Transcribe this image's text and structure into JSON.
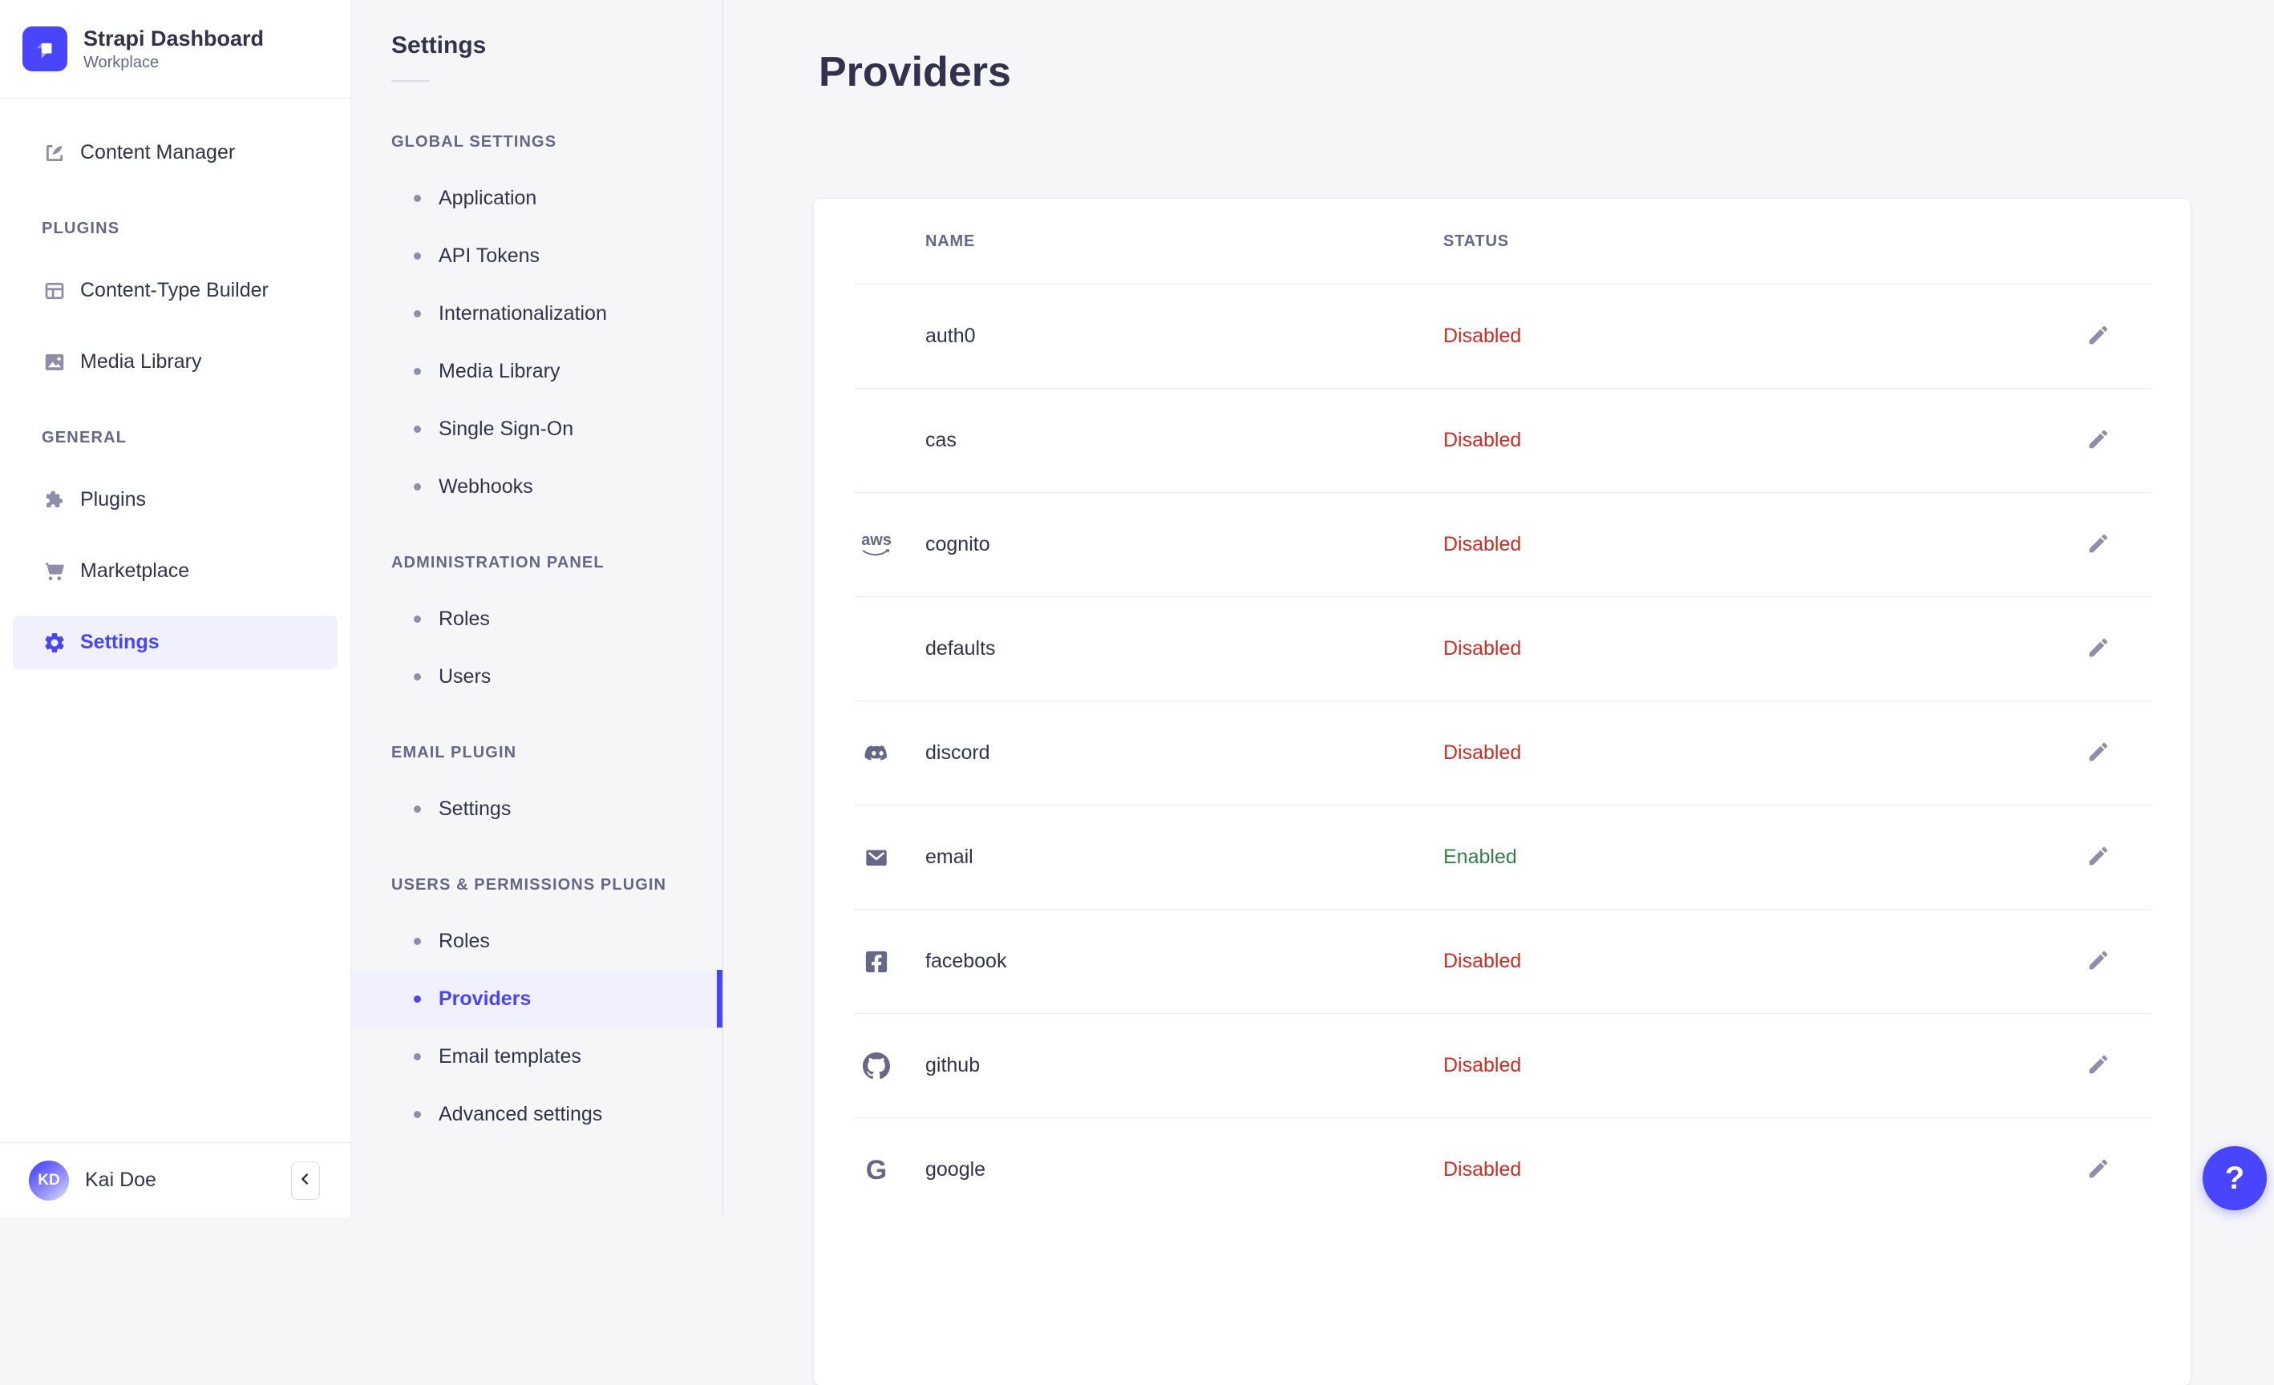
{
  "brand": {
    "title": "Strapi Dashboard",
    "subtitle": "Workplace"
  },
  "sidebar": {
    "items": [
      {
        "label": "Content Manager",
        "icon": "content-manager-icon"
      }
    ],
    "sections": [
      {
        "title": "PLUGINS",
        "items": [
          {
            "label": "Content-Type Builder",
            "icon": "layout-icon"
          },
          {
            "label": "Media Library",
            "icon": "picture-icon"
          }
        ]
      },
      {
        "title": "GENERAL",
        "items": [
          {
            "label": "Plugins",
            "icon": "puzzle-icon"
          },
          {
            "label": "Marketplace",
            "icon": "cart-icon"
          },
          {
            "label": "Settings",
            "icon": "gear-icon",
            "selected": true
          }
        ]
      }
    ],
    "user": {
      "initials": "KD",
      "name": "Kai Doe"
    }
  },
  "subnav": {
    "title": "Settings",
    "sections": [
      {
        "title": "GLOBAL SETTINGS",
        "items": [
          "Application",
          "API Tokens",
          "Internationalization",
          "Media Library",
          "Single Sign-On",
          "Webhooks"
        ]
      },
      {
        "title": "ADMINISTRATION PANEL",
        "items": [
          "Roles",
          "Users"
        ]
      },
      {
        "title": "EMAIL PLUGIN",
        "items": [
          "Settings"
        ]
      },
      {
        "title": "USERS & PERMISSIONS PLUGIN",
        "items": [
          "Roles",
          "Providers",
          "Email templates",
          "Advanced settings"
        ],
        "selected": "Providers"
      }
    ]
  },
  "main": {
    "title": "Providers",
    "table": {
      "columns": [
        "NAME",
        "STATUS"
      ],
      "rows": [
        {
          "name": "auth0",
          "status": "Disabled",
          "icon": "none"
        },
        {
          "name": "cas",
          "status": "Disabled",
          "icon": "none"
        },
        {
          "name": "cognito",
          "status": "Disabled",
          "icon": "aws-icon"
        },
        {
          "name": "defaults",
          "status": "Disabled",
          "icon": "none"
        },
        {
          "name": "discord",
          "status": "Disabled",
          "icon": "discord-icon"
        },
        {
          "name": "email",
          "status": "Enabled",
          "icon": "email-icon"
        },
        {
          "name": "facebook",
          "status": "Disabled",
          "icon": "facebook-icon"
        },
        {
          "name": "github",
          "status": "Disabled",
          "icon": "github-icon"
        },
        {
          "name": "google",
          "status": "Disabled",
          "icon": "google-icon"
        }
      ]
    }
  },
  "help": {
    "label": "?"
  },
  "colors": {
    "primary": "#4945ff",
    "primary_light": "#f0f0ff",
    "danger": "#d02b20",
    "success": "#328048",
    "text": "#32324d",
    "text_muted": "#666687",
    "icon": "#8e8ea9",
    "border": "#eaeaef",
    "background": "#f6f6f9"
  }
}
